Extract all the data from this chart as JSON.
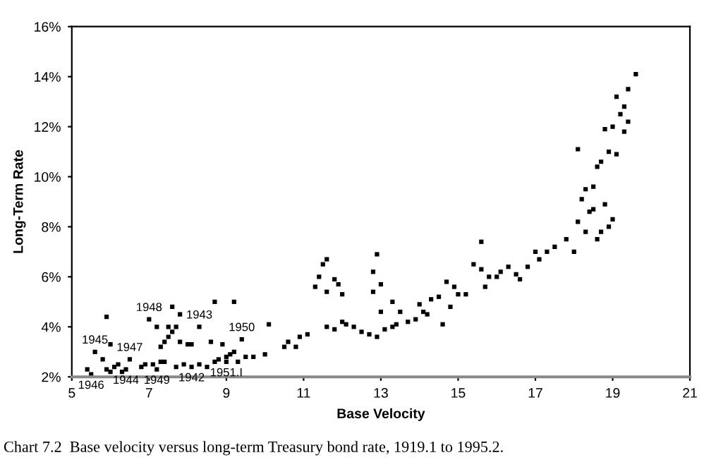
{
  "chart_data": {
    "type": "scatter",
    "xlabel": "Base Velocity",
    "ylabel": "Long-Term Rate",
    "xlim": [
      5,
      21
    ],
    "xticks": [
      5,
      7,
      9,
      11,
      13,
      15,
      17,
      19,
      21
    ],
    "ylim": [
      2,
      16
    ],
    "yticks": [
      {
        "value": 2,
        "label": "2%"
      },
      {
        "value": 4,
        "label": "4%"
      },
      {
        "value": 6,
        "label": "6%"
      },
      {
        "value": 8,
        "label": "8%"
      },
      {
        "value": 10,
        "label": "10%"
      },
      {
        "value": 12,
        "label": "12%"
      },
      {
        "value": 14,
        "label": "14%"
      },
      {
        "value": 16,
        "label": "16%"
      }
    ],
    "grid": false,
    "marker": "square",
    "series": [
      {
        "color": "#000000",
        "x": [
          5.4,
          5.5,
          5.6,
          5.8,
          5.9,
          5.9,
          6.0,
          6.0,
          6.1,
          6.2,
          6.3,
          6.4,
          6.5,
          6.8,
          6.9,
          7.0,
          7.1,
          7.2,
          7.2,
          7.3,
          7.3,
          7.4,
          7.4,
          7.5,
          7.5,
          7.6,
          7.6,
          7.7,
          7.7,
          7.8,
          7.8,
          7.9,
          8.0,
          8.1,
          8.1,
          8.3,
          8.3,
          8.5,
          8.6,
          8.7,
          8.7,
          8.8,
          8.9,
          9.0,
          9.0,
          9.1,
          9.2,
          9.2,
          9.3,
          9.4,
          9.5,
          9.7,
          10.0,
          10.1,
          10.5,
          10.6,
          10.8,
          10.9,
          11.1,
          11.3,
          11.4,
          11.5,
          11.6,
          11.6,
          11.8,
          11.9,
          12.0,
          11.6,
          11.8,
          12.0,
          12.1,
          12.3,
          12.5,
          12.7,
          12.9,
          13.1,
          13.3,
          13.4,
          12.8,
          12.9,
          13.0,
          12.8,
          13.0,
          13.3,
          13.5,
          13.7,
          13.9,
          14.0,
          14.1,
          14.2,
          14.3,
          14.5,
          14.6,
          14.7,
          14.8,
          14.9,
          15.0,
          15.2,
          15.4,
          15.6,
          15.6,
          15.7,
          15.8,
          16.0,
          16.1,
          16.3,
          16.5,
          16.6,
          16.8,
          17.0,
          17.1,
          17.3,
          17.5,
          17.8,
          18.0,
          18.1,
          18.3,
          18.4,
          18.5,
          18.6,
          18.7,
          18.8,
          18.9,
          19.0,
          18.2,
          18.3,
          18.5,
          18.6,
          18.7,
          18.8,
          18.9,
          18.1,
          19.0,
          19.1,
          19.1,
          19.2,
          19.3,
          19.3,
          19.4,
          19.4,
          19.6
        ],
        "values": [
          2.3,
          2.1,
          3.0,
          2.7,
          2.3,
          4.4,
          3.3,
          2.2,
          2.4,
          2.5,
          2.2,
          2.3,
          2.7,
          2.4,
          2.5,
          4.3,
          2.5,
          4.0,
          2.3,
          3.2,
          2.6,
          3.4,
          2.6,
          3.6,
          4.0,
          3.8,
          4.8,
          4.0,
          2.4,
          4.5,
          3.4,
          2.5,
          3.3,
          3.3,
          2.4,
          2.5,
          4.0,
          2.4,
          3.4,
          2.6,
          5.0,
          2.7,
          3.3,
          2.8,
          2.6,
          2.9,
          3.0,
          5.0,
          2.6,
          3.5,
          2.8,
          2.8,
          2.9,
          4.1,
          3.2,
          3.4,
          3.2,
          3.6,
          3.7,
          5.6,
          6.0,
          6.5,
          6.7,
          5.4,
          5.9,
          5.7,
          5.3,
          4.0,
          3.9,
          4.2,
          4.1,
          4.0,
          3.8,
          3.7,
          3.6,
          3.9,
          4.0,
          4.1,
          6.2,
          6.9,
          5.7,
          5.4,
          4.6,
          5.0,
          4.6,
          4.2,
          4.3,
          4.9,
          4.6,
          4.5,
          5.1,
          5.2,
          4.1,
          5.8,
          4.8,
          5.6,
          5.3,
          5.3,
          6.5,
          7.4,
          6.3,
          5.6,
          6.0,
          6.0,
          6.2,
          6.4,
          6.1,
          5.9,
          6.4,
          7.0,
          6.7,
          7.0,
          7.2,
          7.5,
          7.0,
          8.2,
          7.8,
          8.6,
          8.7,
          7.5,
          7.8,
          8.9,
          8.0,
          8.3,
          9.1,
          9.5,
          9.6,
          10.4,
          10.6,
          11.9,
          11.0,
          11.1,
          12.0,
          10.9,
          13.2,
          12.5,
          11.8,
          12.8,
          12.2,
          13.5,
          14.1
        ]
      }
    ],
    "annotations": [
      {
        "text": "1945",
        "x": 5.6,
        "y": 3.0
      },
      {
        "text": "1947",
        "x": 6.5,
        "y": 2.7
      },
      {
        "text": "1948",
        "x": 7.0,
        "y": 4.3
      },
      {
        "text": "1943",
        "x": 8.3,
        "y": 4.0
      },
      {
        "text": "1950",
        "x": 9.4,
        "y": 3.5
      },
      {
        "text": "1946",
        "x": 5.5,
        "y": 2.1
      },
      {
        "text": "1944",
        "x": 6.4,
        "y": 2.3
      },
      {
        "text": "1949",
        "x": 7.2,
        "y": 2.3
      },
      {
        "text": "1942",
        "x": 8.1,
        "y": 2.4
      },
      {
        "text": "1951.I",
        "x": 9.0,
        "y": 2.6
      },
      "Chart 7.2  Base velocity versus long-term Treasury bond rate, 1919.1 to 1995.2."
    ]
  }
}
